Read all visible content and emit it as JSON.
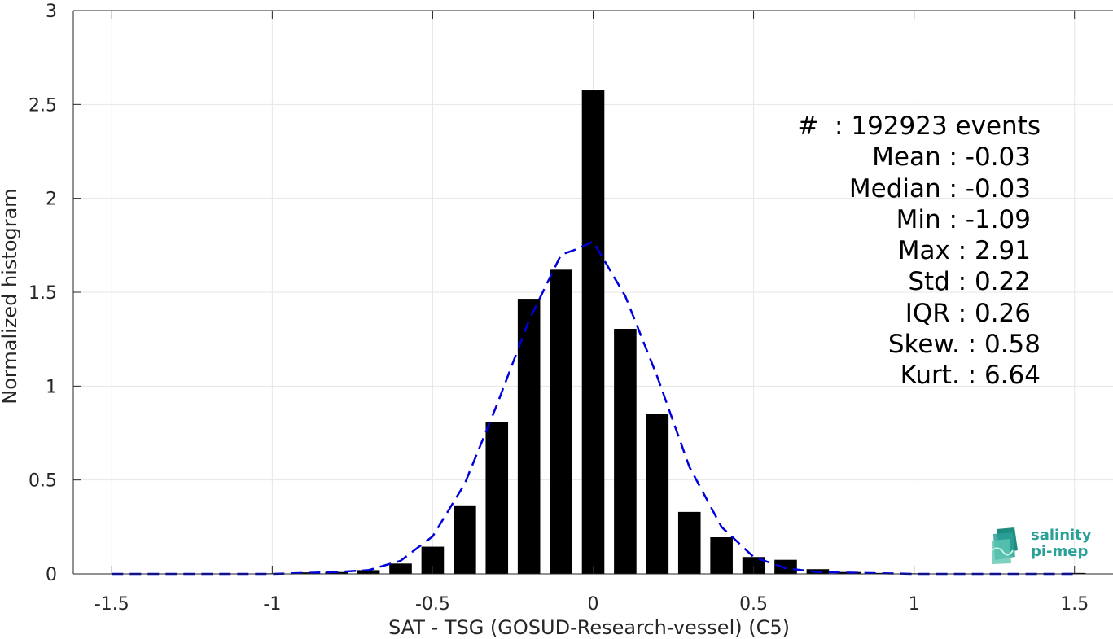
{
  "chart_data": {
    "type": "bar",
    "xlabel": "SAT - TSG (GOSUD-Research-vessel) (C5)",
    "ylabel": "Normalized histogram",
    "xlim": [
      -1.62,
      1.62
    ],
    "ylim": [
      0,
      3
    ],
    "xticks": [
      -1.5,
      -1,
      -0.5,
      0,
      0.5,
      1,
      1.5
    ],
    "xtick_labels": [
      "-1.5",
      "-1",
      "-0.5",
      "0",
      "0.5",
      "1",
      "1.5"
    ],
    "yticks": [
      0,
      0.5,
      1,
      1.5,
      2,
      2.5,
      3
    ],
    "ytick_labels": [
      "0",
      "0.5",
      "1",
      "1.5",
      "2",
      "2.5",
      "3"
    ],
    "grid": true,
    "bar_width": 0.07,
    "bars": {
      "x": [
        -1.5,
        -1.4,
        -1.3,
        -1.2,
        -1.1,
        -1.0,
        -0.9,
        -0.8,
        -0.7,
        -0.6,
        -0.5,
        -0.4,
        -0.3,
        -0.2,
        -0.1,
        0.0,
        0.1,
        0.2,
        0.3,
        0.4,
        0.5,
        0.6,
        0.7,
        0.8,
        0.9,
        1.0,
        1.1,
        1.2,
        1.3,
        1.4,
        1.5
      ],
      "values": [
        0.0,
        0.0,
        0.0,
        0.0,
        0.0,
        0.003,
        0.008,
        0.01,
        0.02,
        0.055,
        0.145,
        0.365,
        0.81,
        1.465,
        1.62,
        2.575,
        1.305,
        0.85,
        0.33,
        0.195,
        0.09,
        0.075,
        0.025,
        0.01,
        0.005,
        0.003,
        0.002,
        0.002,
        0.002,
        0.003,
        0.005
      ]
    },
    "fit_curve": {
      "style": "dashed",
      "x": [
        -1.5,
        -1.0,
        -0.8,
        -0.7,
        -0.6,
        -0.5,
        -0.4,
        -0.3,
        -0.2,
        -0.1,
        -0.05,
        0.0,
        0.1,
        0.2,
        0.3,
        0.4,
        0.5,
        0.6,
        0.7,
        1.0,
        1.5
      ],
      "y": [
        0.0,
        0.0,
        0.01,
        0.02,
        0.07,
        0.2,
        0.48,
        0.9,
        1.35,
        1.7,
        1.73,
        1.77,
        1.48,
        1.05,
        0.57,
        0.25,
        0.09,
        0.03,
        0.01,
        0.0,
        0.0
      ]
    },
    "colors": {
      "bars": "#000000",
      "fit_curve": "#0000dd",
      "grid": "#e6e6e6"
    },
    "annotation_lines": [
      "#  : 192923 events",
      "Mean : -0.03",
      "Median : -0.03",
      "Min : -1.09",
      "Max : 2.91",
      "Std : 0.22",
      "IQR : 0.26",
      "Skew. : 0.58",
      "Kurt. : 6.64"
    ]
  },
  "logo": {
    "line1": "salinity",
    "line2": "pi-mep",
    "color": "#2aa198"
  }
}
